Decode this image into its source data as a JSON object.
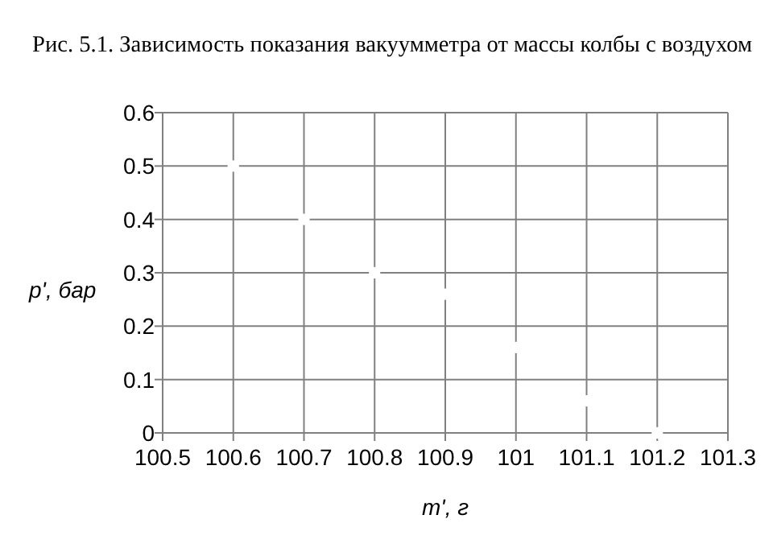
{
  "chart_data": {
    "type": "scatter",
    "title": "Рис. 5.1. Зависимость показания вакуумметра от массы колбы с воздухом",
    "xlabel": "m', г",
    "ylabel": "p', бар",
    "x": [
      100.6,
      100.7,
      100.8,
      100.9,
      101,
      101.1,
      101.2
    ],
    "series": [
      {
        "color": "#ffffff",
        "values": [
          0.5,
          0.4,
          0.3,
          0.26,
          0.16,
          0.06,
          0
        ]
      }
    ],
    "xlim": [
      100.5,
      101.3
    ],
    "xticks": [
      100.5,
      100.6,
      100.7,
      100.8,
      100.9,
      101,
      101.1,
      101.2,
      101.3
    ],
    "ylim": [
      0,
      0.6
    ],
    "yticks": [
      0,
      0.1,
      0.2,
      0.3,
      0.4,
      0.5,
      0.6
    ],
    "grid": true,
    "marker": "circle"
  }
}
